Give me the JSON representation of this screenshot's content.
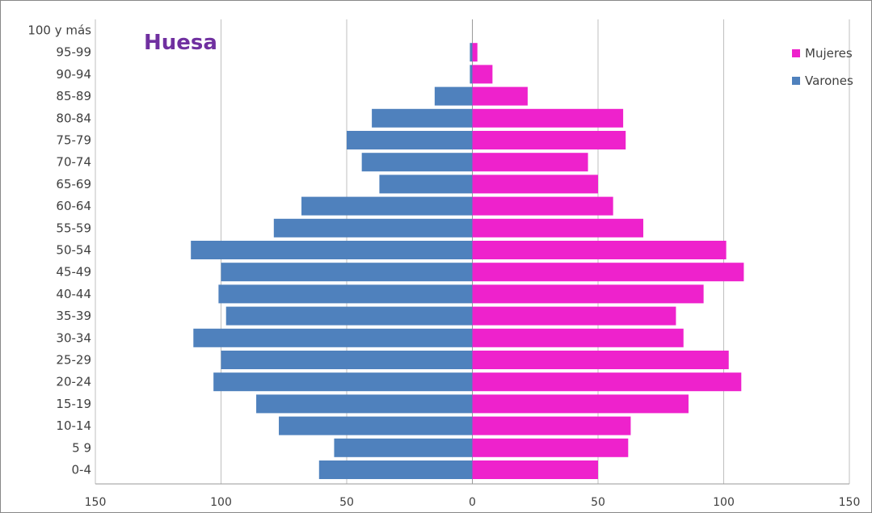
{
  "chart_data": {
    "type": "bar",
    "orientation": "horizontal",
    "title": "Huesa",
    "categories": [
      "0-4",
      "5 9",
      "10-14",
      "15-19",
      "20-24",
      "25-29",
      "30-34",
      "35-39",
      "40-44",
      "45-49",
      "50-54",
      "55-59",
      "60-64",
      "65-69",
      "70-74",
      "75-79",
      "80-84",
      "85-89",
      "90-94",
      "95-99",
      "100 y más"
    ],
    "series": [
      {
        "name": "Mujeres",
        "color": "#ee22cc",
        "side": "right",
        "values": [
          50,
          62,
          63,
          86,
          107,
          102,
          84,
          81,
          92,
          108,
          101,
          68,
          56,
          50,
          46,
          61,
          60,
          22,
          8,
          2,
          0
        ]
      },
      {
        "name": "Varones",
        "color": "#4f81bd",
        "side": "left",
        "values": [
          61,
          55,
          77,
          86,
          103,
          100,
          111,
          98,
          101,
          100,
          112,
          79,
          68,
          37,
          44,
          50,
          40,
          15,
          1,
          1,
          0
        ]
      }
    ],
    "xlim": [
      -150,
      150
    ],
    "xticks": [
      -150,
      -100,
      -50,
      0,
      50,
      100,
      150
    ],
    "xtick_labels": [
      "150",
      "100",
      "50",
      "0",
      "50",
      "100",
      "150"
    ],
    "grid": true,
    "legend_position": "top-right"
  }
}
